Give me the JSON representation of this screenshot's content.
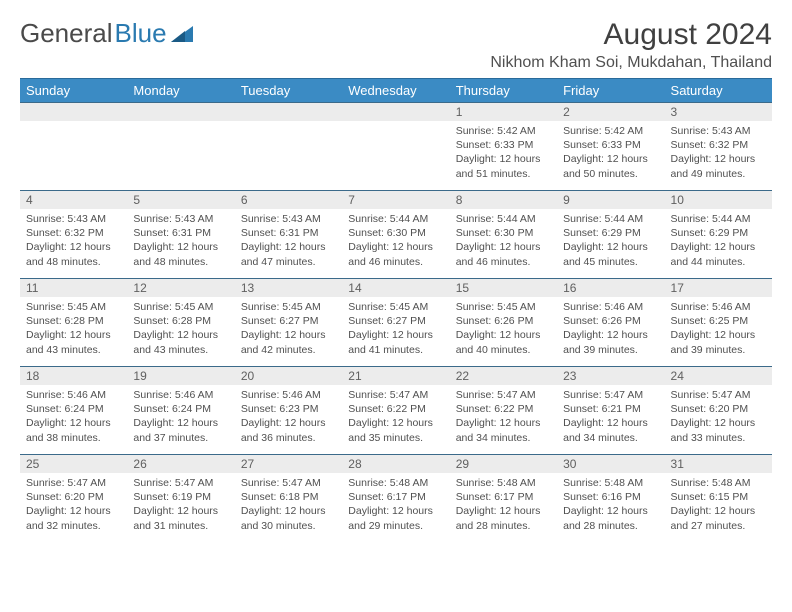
{
  "logo": {
    "text_dark": "General",
    "text_blue": "Blue"
  },
  "title": "August 2024",
  "location": "Nikhom Kham Soi, Mukdahan, Thailand",
  "header_bg": "#3b8bc4",
  "weekdays": [
    "Sunday",
    "Monday",
    "Tuesday",
    "Wednesday",
    "Thursday",
    "Friday",
    "Saturday"
  ],
  "weeks": [
    [
      null,
      null,
      null,
      null,
      {
        "n": "1",
        "sr": "5:42 AM",
        "ss": "6:33 PM",
        "dl": "12 hours and 51 minutes."
      },
      {
        "n": "2",
        "sr": "5:42 AM",
        "ss": "6:33 PM",
        "dl": "12 hours and 50 minutes."
      },
      {
        "n": "3",
        "sr": "5:43 AM",
        "ss": "6:32 PM",
        "dl": "12 hours and 49 minutes."
      }
    ],
    [
      {
        "n": "4",
        "sr": "5:43 AM",
        "ss": "6:32 PM",
        "dl": "12 hours and 48 minutes."
      },
      {
        "n": "5",
        "sr": "5:43 AM",
        "ss": "6:31 PM",
        "dl": "12 hours and 48 minutes."
      },
      {
        "n": "6",
        "sr": "5:43 AM",
        "ss": "6:31 PM",
        "dl": "12 hours and 47 minutes."
      },
      {
        "n": "7",
        "sr": "5:44 AM",
        "ss": "6:30 PM",
        "dl": "12 hours and 46 minutes."
      },
      {
        "n": "8",
        "sr": "5:44 AM",
        "ss": "6:30 PM",
        "dl": "12 hours and 46 minutes."
      },
      {
        "n": "9",
        "sr": "5:44 AM",
        "ss": "6:29 PM",
        "dl": "12 hours and 45 minutes."
      },
      {
        "n": "10",
        "sr": "5:44 AM",
        "ss": "6:29 PM",
        "dl": "12 hours and 44 minutes."
      }
    ],
    [
      {
        "n": "11",
        "sr": "5:45 AM",
        "ss": "6:28 PM",
        "dl": "12 hours and 43 minutes."
      },
      {
        "n": "12",
        "sr": "5:45 AM",
        "ss": "6:28 PM",
        "dl": "12 hours and 43 minutes."
      },
      {
        "n": "13",
        "sr": "5:45 AM",
        "ss": "6:27 PM",
        "dl": "12 hours and 42 minutes."
      },
      {
        "n": "14",
        "sr": "5:45 AM",
        "ss": "6:27 PM",
        "dl": "12 hours and 41 minutes."
      },
      {
        "n": "15",
        "sr": "5:45 AM",
        "ss": "6:26 PM",
        "dl": "12 hours and 40 minutes."
      },
      {
        "n": "16",
        "sr": "5:46 AM",
        "ss": "6:26 PM",
        "dl": "12 hours and 39 minutes."
      },
      {
        "n": "17",
        "sr": "5:46 AM",
        "ss": "6:25 PM",
        "dl": "12 hours and 39 minutes."
      }
    ],
    [
      {
        "n": "18",
        "sr": "5:46 AM",
        "ss": "6:24 PM",
        "dl": "12 hours and 38 minutes."
      },
      {
        "n": "19",
        "sr": "5:46 AM",
        "ss": "6:24 PM",
        "dl": "12 hours and 37 minutes."
      },
      {
        "n": "20",
        "sr": "5:46 AM",
        "ss": "6:23 PM",
        "dl": "12 hours and 36 minutes."
      },
      {
        "n": "21",
        "sr": "5:47 AM",
        "ss": "6:22 PM",
        "dl": "12 hours and 35 minutes."
      },
      {
        "n": "22",
        "sr": "5:47 AM",
        "ss": "6:22 PM",
        "dl": "12 hours and 34 minutes."
      },
      {
        "n": "23",
        "sr": "5:47 AM",
        "ss": "6:21 PM",
        "dl": "12 hours and 34 minutes."
      },
      {
        "n": "24",
        "sr": "5:47 AM",
        "ss": "6:20 PM",
        "dl": "12 hours and 33 minutes."
      }
    ],
    [
      {
        "n": "25",
        "sr": "5:47 AM",
        "ss": "6:20 PM",
        "dl": "12 hours and 32 minutes."
      },
      {
        "n": "26",
        "sr": "5:47 AM",
        "ss": "6:19 PM",
        "dl": "12 hours and 31 minutes."
      },
      {
        "n": "27",
        "sr": "5:47 AM",
        "ss": "6:18 PM",
        "dl": "12 hours and 30 minutes."
      },
      {
        "n": "28",
        "sr": "5:48 AM",
        "ss": "6:17 PM",
        "dl": "12 hours and 29 minutes."
      },
      {
        "n": "29",
        "sr": "5:48 AM",
        "ss": "6:17 PM",
        "dl": "12 hours and 28 minutes."
      },
      {
        "n": "30",
        "sr": "5:48 AM",
        "ss": "6:16 PM",
        "dl": "12 hours and 28 minutes."
      },
      {
        "n": "31",
        "sr": "5:48 AM",
        "ss": "6:15 PM",
        "dl": "12 hours and 27 minutes."
      }
    ]
  ],
  "labels": {
    "sunrise": "Sunrise: ",
    "sunset": "Sunset: ",
    "daylight": "Daylight: "
  }
}
